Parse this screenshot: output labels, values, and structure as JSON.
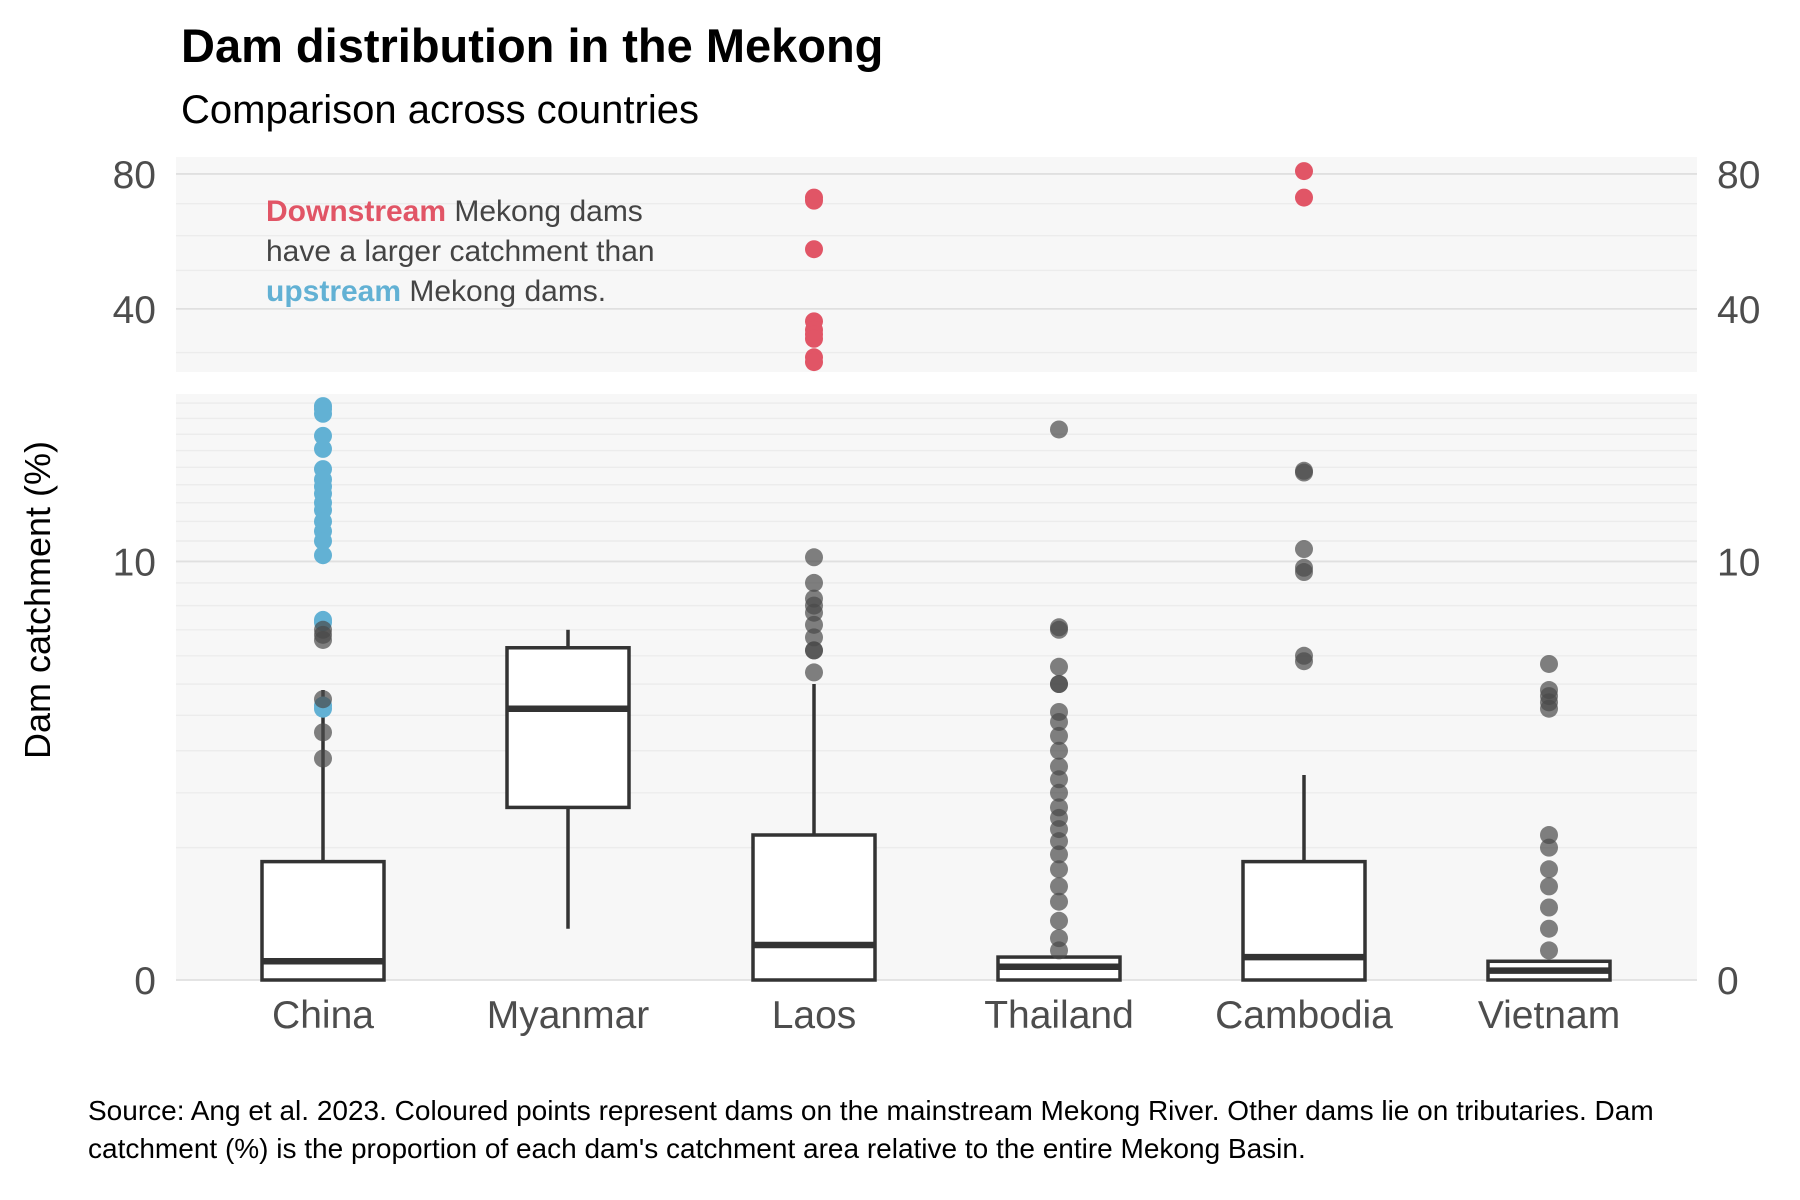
{
  "chart_data": {
    "type": "box",
    "title": "Dam distribution in the Mekong",
    "subtitle": "Comparison across countries",
    "ylabel": "Dam catchment (%)",
    "xlabel": "",
    "categories": [
      "China",
      "Myanmar",
      "Laos",
      "Thailand",
      "Cambodia",
      "Vietnam"
    ],
    "y_scale": "square-root",
    "y_panels": [
      {
        "range": [
          26,
          86
        ],
        "ticks": [
          40,
          80
        ],
        "minor_gridlines": [
          30,
          50,
          60,
          70
        ]
      },
      {
        "range": [
          0,
          19.6
        ],
        "ticks": [
          0,
          10
        ],
        "minor_gridlines": [
          1,
          2,
          3,
          4,
          5,
          6,
          7,
          8,
          9,
          11,
          12,
          13,
          14,
          15,
          16,
          17,
          18,
          19
        ]
      }
    ],
    "ytick_labels": [
      "80",
      "40",
      "10",
      "0"
    ],
    "grid": true,
    "colors": {
      "downstream": "#e15566",
      "upstream": "#62b1d4",
      "tributary": "#4a4a4a",
      "box": "#333333",
      "panel": "#f7f7f7",
      "grid": "#e0e0e0"
    },
    "boxes": [
      {
        "category": "China",
        "whisker_low": 0,
        "q1": 0,
        "median": 0.02,
        "q3": 0.8,
        "whisker_high": 4.8
      },
      {
        "category": "Myanmar",
        "whisker_low": 0.15,
        "q1": 1.7,
        "median": 4.2,
        "q3": 6.3,
        "whisker_high": 7.0
      },
      {
        "category": "Laos",
        "whisker_low": 0,
        "q1": 0,
        "median": 0.07,
        "q3": 1.2,
        "whisker_high": 5.0
      },
      {
        "category": "Thailand",
        "whisker_low": 0,
        "q1": 0,
        "median": 0.01,
        "q3": 0.03,
        "whisker_high": 0.03
      },
      {
        "category": "Cambodia",
        "whisker_low": 0,
        "q1": 0,
        "median": 0.03,
        "q3": 0.8,
        "whisker_high": 2.4
      },
      {
        "category": "Vietnam",
        "whisker_low": 0,
        "q1": 0,
        "median": 0.005,
        "q3": 0.02,
        "whisker_high": 0.02
      }
    ],
    "points": [
      {
        "category": "China",
        "group": "upstream",
        "values": [
          18.8,
          18.6,
          18.3,
          16.9,
          16.1,
          14.9,
          14.3,
          13.9,
          13.5,
          13.0,
          12.6,
          12.0,
          11.5,
          11.0,
          10.3,
          7.4,
          7.3,
          4.3,
          4.2
        ]
      },
      {
        "category": "China",
        "group": "tributary",
        "values": [
          7.0,
          6.8,
          6.6,
          4.5,
          3.5,
          2.8
        ]
      },
      {
        "category": "Laos",
        "group": "downstream",
        "values": [
          72,
          71,
          56,
          37,
          35,
          34,
          33,
          29,
          28
        ]
      },
      {
        "category": "Laos",
        "group": "tributary",
        "values": [
          10.2,
          9.0,
          8.3,
          8.0,
          7.7,
          7.2,
          6.7,
          6.2,
          6.2,
          5.4
        ]
      },
      {
        "category": "Thailand",
        "group": "tributary",
        "values": [
          17.3,
          7.0,
          7.1,
          5.6,
          5.0,
          5.0,
          4.1,
          3.8,
          3.4,
          3.0,
          2.6,
          2.3,
          2.0,
          1.7,
          1.5,
          1.3,
          1.1,
          0.9,
          0.7,
          0.5,
          0.35,
          0.2,
          0.1,
          0.05
        ]
      },
      {
        "category": "Cambodia",
        "group": "downstream",
        "values": [
          81,
          72
        ]
      },
      {
        "category": "Cambodia",
        "group": "tributary",
        "values": [
          14.8,
          14.7,
          10.6,
          9.7,
          9.5,
          6.0,
          5.8
        ]
      },
      {
        "category": "Vietnam",
        "group": "tributary",
        "values": [
          5.7,
          4.8,
          4.6,
          4.4,
          4.2,
          1.2,
          1.0,
          0.7,
          0.5,
          0.3,
          0.15,
          0.05
        ]
      }
    ]
  },
  "annotation": {
    "downstream": "Downstream",
    "line1_rest": " Mekong dams",
    "line2": "have a larger catchment than",
    "upstream": "upstream",
    "line3_rest": " Mekong dams."
  },
  "caption": "Source: Ang et al. 2023. Coloured points represent dams on the mainstream Mekong River. Other dams lie on tributaries. Dam catchment (%) is the proportion of each dam's catchment area relative to the entire Mekong Basin."
}
